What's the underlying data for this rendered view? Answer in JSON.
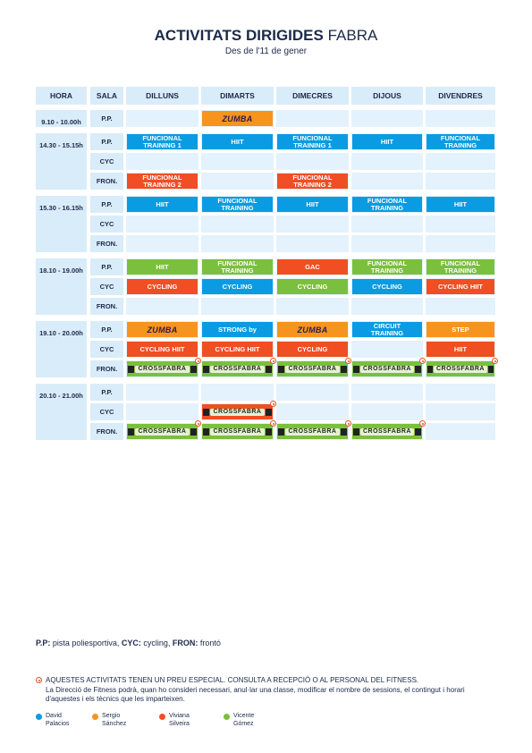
{
  "header": {
    "title_bold": "ACTIVITATS DIRIGIDES",
    "title_light": "FABRA",
    "subtitle": "Des de l'11 de gener"
  },
  "columns": {
    "hora": "HORA",
    "sala": "SALA",
    "days": [
      "DILLUNS",
      "DIMARTS",
      "DIMECRES",
      "DIJOUS",
      "DIVENDRES"
    ]
  },
  "blocks": [
    {
      "hour": "9.10 - 10.00h",
      "rows": [
        {
          "sala": "P.P.",
          "cells": [
            null,
            {
              "type": "zumba",
              "color": "orange"
            },
            null,
            null,
            null
          ]
        }
      ]
    },
    {
      "hour": "14.30 - 15.15h",
      "rows": [
        {
          "sala": "P.P.",
          "cells": [
            {
              "text": "FUNCIONAL TRAINING 1",
              "color": "blue"
            },
            {
              "text": "HIIT",
              "color": "blue"
            },
            {
              "text": "FUNCIONAL TRAINING 1",
              "color": "blue"
            },
            {
              "text": "HIIT",
              "color": "blue"
            },
            {
              "text": "FUNCIONAL TRAINING",
              "color": "blue"
            }
          ]
        },
        {
          "sala": "CYC",
          "cells": [
            null,
            null,
            null,
            null,
            null
          ]
        },
        {
          "sala": "FRON.",
          "cells": [
            {
              "text": "FUNCIONAL TRAINING 2",
              "color": "red"
            },
            null,
            {
              "text": "FUNCIONAL TRAINING 2",
              "color": "red"
            },
            null,
            null
          ]
        }
      ]
    },
    {
      "hour": "15.30 - 16.15h",
      "rows": [
        {
          "sala": "P.P.",
          "cells": [
            {
              "text": "HIIT",
              "color": "blue"
            },
            {
              "text": "FUNCIONAL TRAINING",
              "color": "blue"
            },
            {
              "text": "HIIT",
              "color": "blue"
            },
            {
              "text": "FUNCIONAL TRAINING",
              "color": "blue"
            },
            {
              "text": "HIIT",
              "color": "blue"
            }
          ]
        },
        {
          "sala": "CYC",
          "cells": [
            null,
            null,
            null,
            null,
            null
          ]
        },
        {
          "sala": "FRON.",
          "cells": [
            null,
            null,
            null,
            null,
            null
          ]
        }
      ]
    },
    {
      "hour": "18.10 - 19.00h",
      "rows": [
        {
          "sala": "P.P.",
          "cells": [
            {
              "text": "HIIT",
              "color": "green"
            },
            {
              "text": "FUNCIONAL TRAINING",
              "color": "green"
            },
            {
              "text": "GAC",
              "color": "red"
            },
            {
              "text": "FUNCIONAL TRAINING",
              "color": "green"
            },
            {
              "text": "FUNCIONAL TRAINING",
              "color": "green"
            }
          ]
        },
        {
          "sala": "CYC",
          "cells": [
            {
              "text": "CYCLING",
              "color": "red"
            },
            {
              "text": "CYCLING",
              "color": "blue"
            },
            {
              "text": "CYCLING",
              "color": "green"
            },
            {
              "text": "CYCLING",
              "color": "blue"
            },
            {
              "text": "CYCLING HIIT",
              "color": "red"
            }
          ]
        },
        {
          "sala": "FRON.",
          "cells": [
            null,
            null,
            null,
            null,
            null
          ]
        }
      ]
    },
    {
      "hour": "19.10 - 20.00h",
      "rows": [
        {
          "sala": "P.P.",
          "cells": [
            {
              "type": "zumba",
              "color": "orange"
            },
            {
              "type": "strong",
              "text": "STRONG by",
              "color": "blue"
            },
            {
              "type": "zumba",
              "color": "orange"
            },
            {
              "text": "CIRCUIT TRAINING",
              "color": "blue"
            },
            {
              "text": "STEP",
              "color": "orange"
            }
          ]
        },
        {
          "sala": "CYC",
          "cells": [
            {
              "text": "CYCLING HIIT",
              "color": "red"
            },
            {
              "text": "CYCLING HIIT",
              "color": "red"
            },
            {
              "text": "CYCLING",
              "color": "red"
            },
            null,
            {
              "text": "HIIT",
              "color": "red"
            }
          ]
        },
        {
          "sala": "FRON.",
          "cells": [
            {
              "type": "cross",
              "color": "green",
              "star": true
            },
            {
              "type": "cross",
              "color": "green",
              "star": true
            },
            {
              "type": "cross",
              "color": "green",
              "star": true
            },
            {
              "type": "cross",
              "color": "green",
              "star": true
            },
            {
              "type": "cross",
              "color": "green",
              "star": true
            }
          ]
        }
      ]
    },
    {
      "hour": "20.10 - 21.00h",
      "rows": [
        {
          "sala": "P.P.",
          "cells": [
            null,
            null,
            null,
            null,
            null
          ]
        },
        {
          "sala": "CYC",
          "cells": [
            null,
            {
              "type": "cross",
              "color": "red",
              "star": true
            },
            null,
            null,
            null
          ]
        },
        {
          "sala": "FRON.",
          "cells": [
            {
              "type": "cross",
              "color": "green",
              "star": true
            },
            {
              "type": "cross",
              "color": "green",
              "star": true
            },
            {
              "type": "cross",
              "color": "green",
              "star": true
            },
            {
              "type": "cross",
              "color": "green",
              "star": true
            },
            null
          ]
        }
      ]
    }
  ],
  "logos": {
    "zumba": "ZUMBA",
    "cross": "CROSSFABRA"
  },
  "colors": {
    "blue": "#0a9be3",
    "red": "#f04e23",
    "green": "#7bbf3e",
    "orange": "#f7941d"
  },
  "legend": {
    "pp_abbr": "P.P:",
    "pp": " pista poliesportiva, ",
    "cyc_abbr": "CYC:",
    "cyc": " cycling, ",
    "fron_abbr": "FRON:",
    "fron": " frontó"
  },
  "notes": {
    "special": "AQUESTES ACTIVITATS TENEN UN PREU ESPECIAL. CONSULTA A RECEPCIÓ O AL PERSONAL DEL FITNESS.",
    "disclaimer": "La Direcció de Fitness podrà, quan ho consideri necessari, anul·lar una classe, modificar el nombre de sessions, el contingut i horari d'aquestes i els tècnics que les imparteixen."
  },
  "instructors": [
    {
      "first": "David",
      "last": "Palacios",
      "color": "blue"
    },
    {
      "first": "Sergio",
      "last": "Sánchez",
      "color": "orange"
    },
    {
      "first": "Viviana",
      "last": "Silveira",
      "color": "red"
    },
    {
      "first": "Vicente",
      "last": "Gómez",
      "color": "green"
    }
  ]
}
